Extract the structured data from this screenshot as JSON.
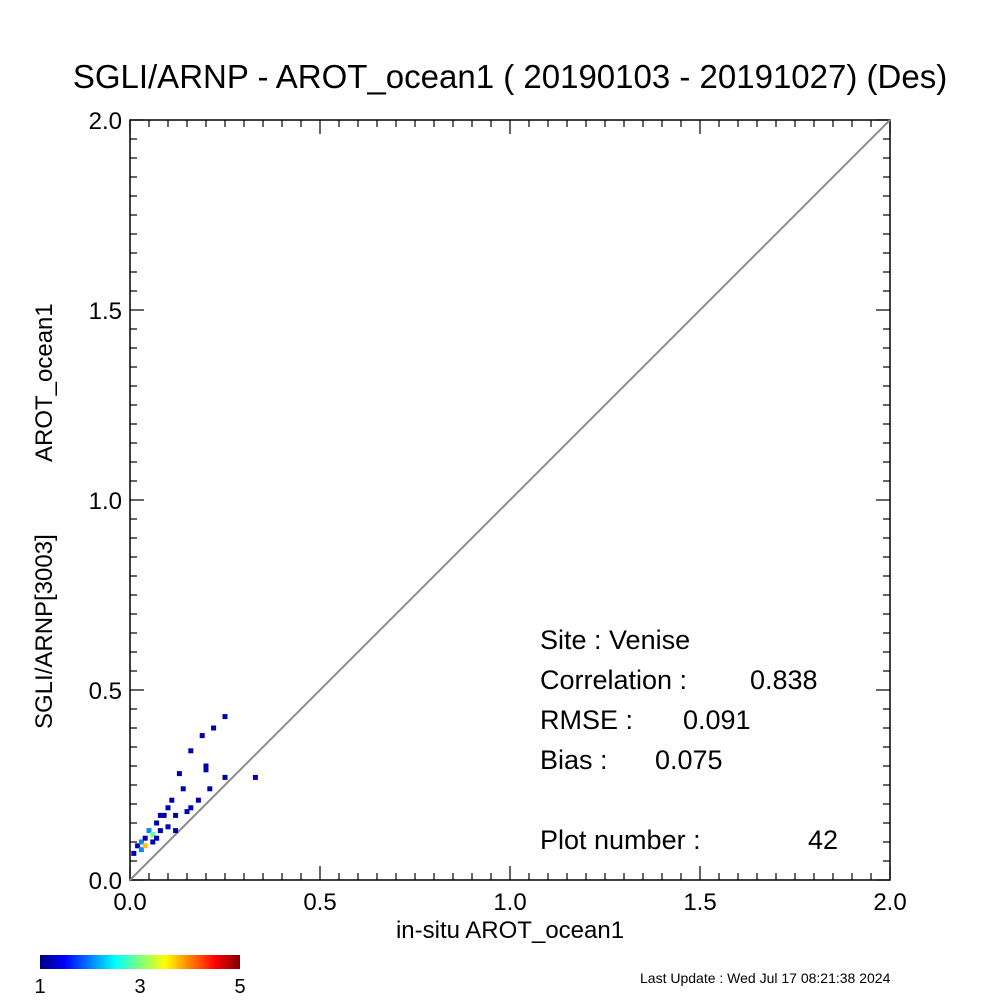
{
  "chart_data": {
    "type": "scatter",
    "title": "SGLI/ARNP - AROT_ocean1 ( 20190103 - 20191027) (Des)",
    "xlabel": "in-situ AROT_ocean1",
    "ylabel_line1": "SGLI/ARNP[3003]",
    "ylabel_line2": "AROT_ocean1",
    "xlim": [
      0.0,
      2.0
    ],
    "ylim": [
      0.0,
      2.0
    ],
    "x_ticks": [
      "0.0",
      "0.5",
      "1.0",
      "1.5",
      "2.0"
    ],
    "y_ticks": [
      "0.0",
      "0.5",
      "1.0",
      "1.5",
      "2.0"
    ],
    "reference_line": "1:1",
    "grid": false,
    "colorbar": {
      "min": 1,
      "max": 5,
      "labels": [
        "1",
        "3",
        "5"
      ],
      "colormap": "jet"
    },
    "points": [
      {
        "x": 0.01,
        "y": 0.07,
        "count": 1
      },
      {
        "x": 0.02,
        "y": 0.09,
        "count": 1
      },
      {
        "x": 0.03,
        "y": 0.08,
        "count": 2
      },
      {
        "x": 0.03,
        "y": 0.1,
        "count": 2
      },
      {
        "x": 0.04,
        "y": 0.11,
        "count": 1
      },
      {
        "x": 0.04,
        "y": 0.09,
        "count": 4
      },
      {
        "x": 0.05,
        "y": 0.13,
        "count": 2
      },
      {
        "x": 0.06,
        "y": 0.12,
        "count": 3
      },
      {
        "x": 0.06,
        "y": 0.1,
        "count": 1
      },
      {
        "x": 0.07,
        "y": 0.11,
        "count": 1
      },
      {
        "x": 0.07,
        "y": 0.15,
        "count": 1
      },
      {
        "x": 0.08,
        "y": 0.17,
        "count": 1
      },
      {
        "x": 0.08,
        "y": 0.13,
        "count": 1
      },
      {
        "x": 0.09,
        "y": 0.17,
        "count": 1
      },
      {
        "x": 0.1,
        "y": 0.14,
        "count": 1
      },
      {
        "x": 0.1,
        "y": 0.19,
        "count": 1
      },
      {
        "x": 0.11,
        "y": 0.21,
        "count": 1
      },
      {
        "x": 0.12,
        "y": 0.17,
        "count": 1
      },
      {
        "x": 0.12,
        "y": 0.13,
        "count": 1
      },
      {
        "x": 0.13,
        "y": 0.28,
        "count": 1
      },
      {
        "x": 0.14,
        "y": 0.24,
        "count": 1
      },
      {
        "x": 0.15,
        "y": 0.18,
        "count": 1
      },
      {
        "x": 0.16,
        "y": 0.19,
        "count": 1
      },
      {
        "x": 0.16,
        "y": 0.34,
        "count": 1
      },
      {
        "x": 0.18,
        "y": 0.21,
        "count": 1
      },
      {
        "x": 0.19,
        "y": 0.38,
        "count": 1
      },
      {
        "x": 0.2,
        "y": 0.3,
        "count": 1
      },
      {
        "x": 0.2,
        "y": 0.29,
        "count": 1
      },
      {
        "x": 0.21,
        "y": 0.24,
        "count": 1
      },
      {
        "x": 0.22,
        "y": 0.4,
        "count": 1
      },
      {
        "x": 0.25,
        "y": 0.43,
        "count": 1
      },
      {
        "x": 0.25,
        "y": 0.27,
        "count": 1
      },
      {
        "x": 0.33,
        "y": 0.27,
        "count": 1
      }
    ]
  },
  "stats": {
    "site": "Site : Venise",
    "correlation_label": "Correlation :",
    "correlation_value": "0.838",
    "rmse_label": "RMSE :",
    "rmse_value": "0.091",
    "bias_label": "Bias :",
    "bias_value": "0.075",
    "plot_number_label": "Plot number :",
    "plot_number_value": "42"
  },
  "footer": {
    "last_update": "Last Update : Wed Jul 17 08:21:38 2024"
  }
}
